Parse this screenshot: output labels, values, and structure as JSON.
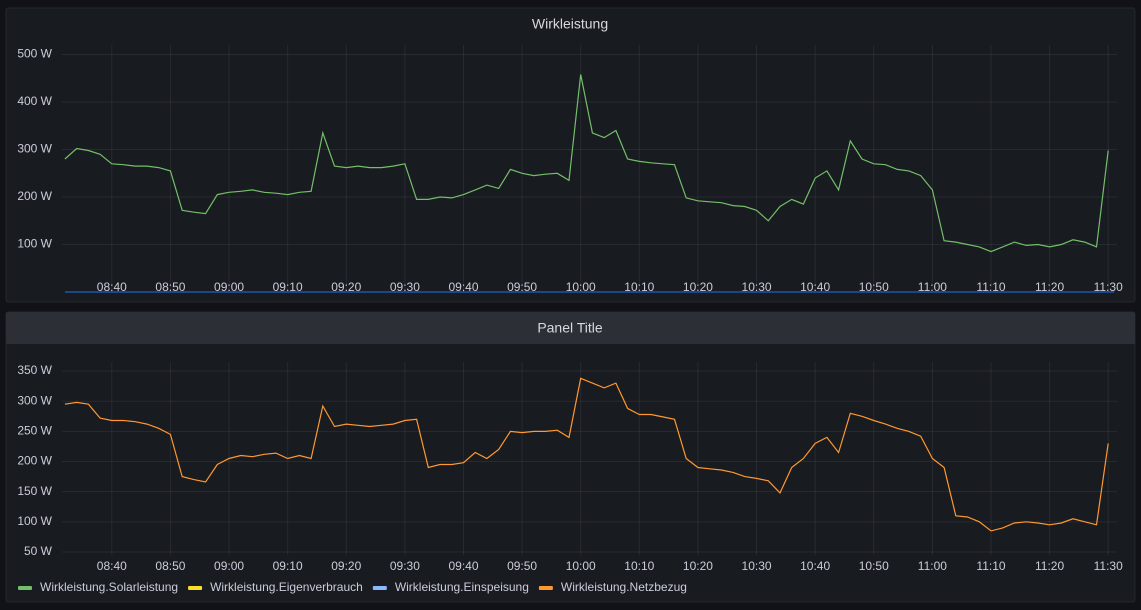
{
  "chart_data": [
    {
      "type": "line",
      "title": "Wirkleistung",
      "x": [
        "08:32",
        "08:34",
        "08:36",
        "08:38",
        "08:40",
        "08:42",
        "08:44",
        "08:46",
        "08:48",
        "08:50",
        "08:52",
        "08:54",
        "08:56",
        "08:58",
        "09:00",
        "09:02",
        "09:04",
        "09:06",
        "09:08",
        "09:10",
        "09:12",
        "09:14",
        "09:16",
        "09:18",
        "09:20",
        "09:22",
        "09:24",
        "09:26",
        "09:28",
        "09:30",
        "09:32",
        "09:34",
        "09:36",
        "09:38",
        "09:40",
        "09:42",
        "09:44",
        "09:46",
        "09:48",
        "09:50",
        "09:52",
        "09:54",
        "09:56",
        "09:58",
        "10:00",
        "10:02",
        "10:04",
        "10:06",
        "10:08",
        "10:10",
        "10:12",
        "10:14",
        "10:16",
        "10:18",
        "10:20",
        "10:22",
        "10:24",
        "10:26",
        "10:28",
        "10:30",
        "10:32",
        "10:34",
        "10:36",
        "10:38",
        "10:40",
        "10:42",
        "10:44",
        "10:46",
        "10:48",
        "10:50",
        "10:52",
        "10:54",
        "10:56",
        "10:58",
        "11:00",
        "11:02",
        "11:04",
        "11:06",
        "11:08",
        "11:10",
        "11:12",
        "11:14",
        "11:16",
        "11:18",
        "11:20",
        "11:22",
        "11:24",
        "11:26",
        "11:28",
        "11:30"
      ],
      "series": [
        {
          "color": "#73bf69",
          "values": [
            280,
            302,
            298,
            290,
            270,
            268,
            265,
            265,
            262,
            255,
            172,
            168,
            165,
            205,
            210,
            212,
            215,
            210,
            208,
            205,
            210,
            212,
            335,
            265,
            262,
            265,
            262,
            262,
            265,
            270,
            195,
            195,
            200,
            198,
            205,
            215,
            225,
            218,
            258,
            250,
            245,
            248,
            250,
            235,
            458,
            335,
            325,
            340,
            280,
            275,
            272,
            270,
            268,
            198,
            192,
            190,
            188,
            182,
            180,
            172,
            150,
            180,
            195,
            185,
            240,
            255,
            215,
            318,
            280,
            270,
            268,
            258,
            255,
            245,
            215,
            108,
            105,
            100,
            95,
            85,
            95,
            105,
            98,
            100,
            95,
            100,
            110,
            105,
            95,
            298
          ]
        },
        {
          "color": "#1f60c4",
          "x": [
            "08:32",
            "11:31"
          ],
          "values": [
            0,
            0
          ]
        }
      ],
      "xlim": [
        "08:31.5",
        "11:31.5"
      ],
      "xticks": [
        "08:40",
        "08:50",
        "09:00",
        "09:10",
        "09:20",
        "09:30",
        "09:40",
        "09:50",
        "10:00",
        "10:10",
        "10:20",
        "10:30",
        "10:40",
        "10:50",
        "11:00",
        "11:10",
        "11:20",
        "11:30"
      ],
      "ylim": [
        0,
        520
      ],
      "yticks": [
        {
          "value": 100,
          "label": "100 W"
        },
        {
          "value": 200,
          "label": "200 W"
        },
        {
          "value": 300,
          "label": "300 W"
        },
        {
          "value": 400,
          "label": "400 W"
        },
        {
          "value": 500,
          "label": "500 W"
        }
      ],
      "grid": true
    },
    {
      "type": "line",
      "title": "Panel Title",
      "x": [
        "08:32",
        "08:34",
        "08:36",
        "08:38",
        "08:40",
        "08:42",
        "08:44",
        "08:46",
        "08:48",
        "08:50",
        "08:52",
        "08:54",
        "08:56",
        "08:58",
        "09:00",
        "09:02",
        "09:04",
        "09:06",
        "09:08",
        "09:10",
        "09:12",
        "09:14",
        "09:16",
        "09:18",
        "09:20",
        "09:22",
        "09:24",
        "09:26",
        "09:28",
        "09:30",
        "09:32",
        "09:34",
        "09:36",
        "09:38",
        "09:40",
        "09:42",
        "09:44",
        "09:46",
        "09:48",
        "09:50",
        "09:52",
        "09:54",
        "09:56",
        "09:58",
        "10:00",
        "10:02",
        "10:04",
        "10:06",
        "10:08",
        "10:10",
        "10:12",
        "10:14",
        "10:16",
        "10:18",
        "10:20",
        "10:22",
        "10:24",
        "10:26",
        "10:28",
        "10:30",
        "10:32",
        "10:34",
        "10:36",
        "10:38",
        "10:40",
        "10:42",
        "10:44",
        "10:46",
        "10:48",
        "10:50",
        "10:52",
        "10:54",
        "10:56",
        "10:58",
        "11:00",
        "11:02",
        "11:04",
        "11:06",
        "11:08",
        "11:10",
        "11:12",
        "11:14",
        "11:16",
        "11:18",
        "11:20",
        "11:22",
        "11:24",
        "11:26",
        "11:28",
        "11:30"
      ],
      "series": [
        {
          "name": "Wirkleistung.Solarleistung",
          "color": "#73bf69"
        },
        {
          "name": "Wirkleistung.Eigenverbrauch",
          "color": "#fade2a"
        },
        {
          "name": "Wirkleistung.Einspeisung",
          "color": "#8ab8ff"
        },
        {
          "name": "Wirkleistung.Netzbezug",
          "color": "#ff9830",
          "values": [
            295,
            298,
            295,
            272,
            268,
            268,
            266,
            262,
            255,
            245,
            175,
            170,
            166,
            195,
            205,
            210,
            208,
            212,
            214,
            205,
            210,
            205,
            292,
            258,
            262,
            260,
            258,
            260,
            262,
            268,
            270,
            190,
            195,
            195,
            198,
            215,
            205,
            220,
            250,
            248,
            250,
            250,
            252,
            240,
            338,
            330,
            322,
            330,
            288,
            278,
            278,
            274,
            270,
            205,
            190,
            188,
            186,
            182,
            175,
            172,
            168,
            148,
            190,
            205,
            230,
            240,
            215,
            280,
            275,
            268,
            262,
            255,
            250,
            242,
            205,
            190,
            110,
            108,
            100,
            85,
            90,
            98,
            100,
            98,
            95,
            98,
            105,
            100,
            95,
            230
          ]
        }
      ],
      "xlim": [
        "08:31.5",
        "11:31.5"
      ],
      "xticks": [
        "08:40",
        "08:50",
        "09:00",
        "09:10",
        "09:20",
        "09:30",
        "09:40",
        "09:50",
        "10:00",
        "10:10",
        "10:20",
        "10:30",
        "10:40",
        "10:50",
        "11:00",
        "11:10",
        "11:20",
        "11:30"
      ],
      "ylim": [
        45,
        365
      ],
      "yticks": [
        {
          "value": 50,
          "label": "50 W"
        },
        {
          "value": 100,
          "label": "100 W"
        },
        {
          "value": 150,
          "label": "150 W"
        },
        {
          "value": 200,
          "label": "200 W"
        },
        {
          "value": 250,
          "label": "250 W"
        },
        {
          "value": 300,
          "label": "300 W"
        },
        {
          "value": 350,
          "label": "350 W"
        }
      ],
      "grid": true,
      "legend": "bottom-left"
    }
  ]
}
